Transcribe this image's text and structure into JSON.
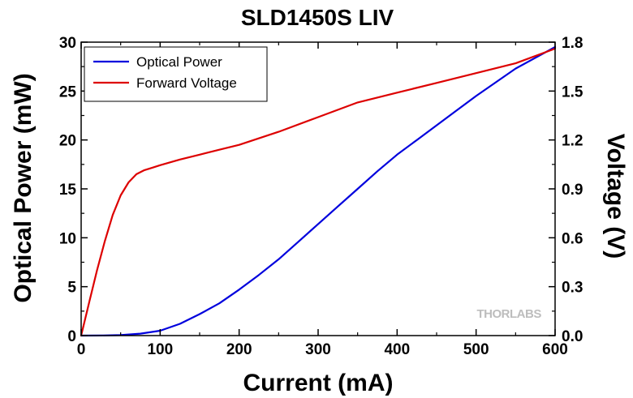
{
  "chart_data": {
    "type": "line",
    "title": "SLD1450S LIV",
    "xlabel": "Current (mA)",
    "ylabel": "Optical Power (mW)",
    "y2label": "Voltage (V)",
    "xlim": [
      0,
      600
    ],
    "ylim": [
      0,
      30
    ],
    "y2lim": [
      0,
      1.8
    ],
    "x_ticks": [
      0,
      100,
      200,
      300,
      400,
      500,
      600
    ],
    "x_tick_labels": [
      "0",
      "100",
      "200",
      "300",
      "400",
      "500",
      "600"
    ],
    "y_ticks": [
      0,
      5,
      10,
      15,
      20,
      25,
      30
    ],
    "y_tick_labels": [
      "0",
      "5",
      "10",
      "15",
      "20",
      "25",
      "30"
    ],
    "y2_ticks": [
      0,
      0.3,
      0.6,
      0.9,
      1.2,
      1.5,
      1.8
    ],
    "y2_tick_labels": [
      "0.0",
      "0.3",
      "0.6",
      "0.9",
      "1.2",
      "1.5",
      "1.8"
    ],
    "grid": false,
    "legend_position": "top-left",
    "series": [
      {
        "name": "Optical Power",
        "axis": "left",
        "color": "#0000dd",
        "x": [
          0,
          25,
          50,
          75,
          100,
          125,
          150,
          175,
          200,
          225,
          250,
          275,
          300,
          325,
          350,
          375,
          400,
          425,
          450,
          475,
          500,
          525,
          550,
          575,
          600
        ],
        "y": [
          0,
          0.01,
          0.05,
          0.2,
          0.5,
          1.2,
          2.2,
          3.3,
          4.7,
          6.2,
          7.8,
          9.6,
          11.4,
          13.2,
          15.0,
          16.8,
          18.5,
          20.0,
          21.5,
          23.0,
          24.5,
          25.9,
          27.3,
          28.4,
          29.5
        ]
      },
      {
        "name": "Forward Voltage",
        "axis": "right",
        "color": "#dd0000",
        "x": [
          0,
          10,
          20,
          30,
          40,
          50,
          60,
          70,
          80,
          90,
          100,
          125,
          150,
          175,
          200,
          250,
          300,
          350,
          400,
          450,
          500,
          550,
          600
        ],
        "y": [
          0,
          0.2,
          0.4,
          0.58,
          0.74,
          0.86,
          0.94,
          0.99,
          1.015,
          1.03,
          1.045,
          1.08,
          1.11,
          1.14,
          1.17,
          1.25,
          1.34,
          1.43,
          1.49,
          1.55,
          1.61,
          1.67,
          1.76
        ]
      }
    ]
  },
  "watermark": {
    "left": "THOR",
    "right": "LABS"
  }
}
